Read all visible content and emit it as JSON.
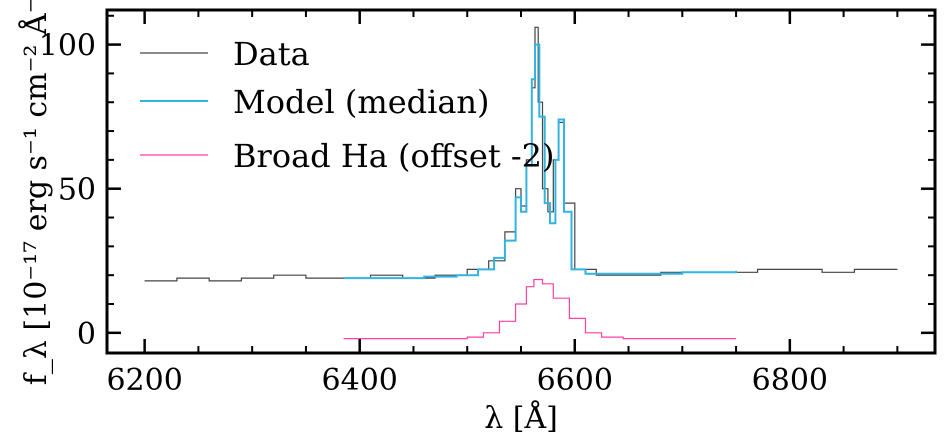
{
  "chart_data": {
    "type": "line",
    "xlabel": "λ [Å]",
    "ylabel": "f_λ [10⁻¹⁷ erg s⁻¹ cm⁻² Å⁻¹]",
    "xlim": [
      6165,
      6935
    ],
    "ylim": [
      -7,
      112
    ],
    "x_ticks": [
      6200,
      6400,
      6600,
      6800
    ],
    "y_ticks": [
      0,
      50,
      100
    ],
    "x_tick_labels": [
      "6200",
      "6400",
      "6600",
      "6800"
    ],
    "y_tick_labels": [
      "0",
      "50",
      "100"
    ],
    "legend_position": "top-left",
    "grid": false,
    "series": [
      {
        "name": "Data",
        "color": "#444444",
        "style": "steps",
        "note_range": [
          6200,
          6900
        ],
        "x": [
          6200,
          6230,
          6260,
          6290,
          6320,
          6350,
          6380,
          6410,
          6440,
          6470,
          6500,
          6520,
          6535,
          6545,
          6550,
          6555,
          6560,
          6563,
          6566,
          6570,
          6575,
          6580,
          6585,
          6590,
          6600,
          6620,
          6650,
          6680,
          6710,
          6740,
          6770,
          6800,
          6830,
          6860,
          6900
        ],
        "y": [
          18,
          19,
          18,
          19,
          20,
          19,
          19,
          20,
          19,
          20,
          22,
          25,
          35,
          50,
          44,
          60,
          85,
          106,
          80,
          50,
          42,
          60,
          73,
          45,
          22,
          20,
          20,
          21,
          21,
          21,
          22,
          22,
          21,
          22,
          22
        ]
      },
      {
        "name": "Model (median)",
        "color": "#33b3e0",
        "style": "steps",
        "x": [
          6385,
          6420,
          6460,
          6490,
          6510,
          6525,
          6535,
          6545,
          6550,
          6555,
          6560,
          6563,
          6567,
          6572,
          6577,
          6582,
          6585,
          6590,
          6597,
          6610,
          6650,
          6700,
          6750
        ],
        "y": [
          19,
          19,
          19.5,
          20,
          22,
          26,
          32,
          47,
          42,
          58,
          88,
          100,
          75,
          45,
          38,
          60,
          74,
          42,
          22,
          20.5,
          20.5,
          21,
          21.5
        ]
      },
      {
        "name": "Broad Ha (offset -2)",
        "color": "#ff3fa4",
        "style": "steps",
        "x": [
          6385,
          6480,
          6500,
          6515,
          6530,
          6545,
          6555,
          6562,
          6570,
          6580,
          6595,
          6610,
          6625,
          6645,
          6750
        ],
        "y": [
          -2,
          -2,
          -1.5,
          0,
          4,
          10,
          16,
          18.5,
          17,
          12,
          5,
          0,
          -1.5,
          -2,
          -2
        ]
      }
    ]
  }
}
